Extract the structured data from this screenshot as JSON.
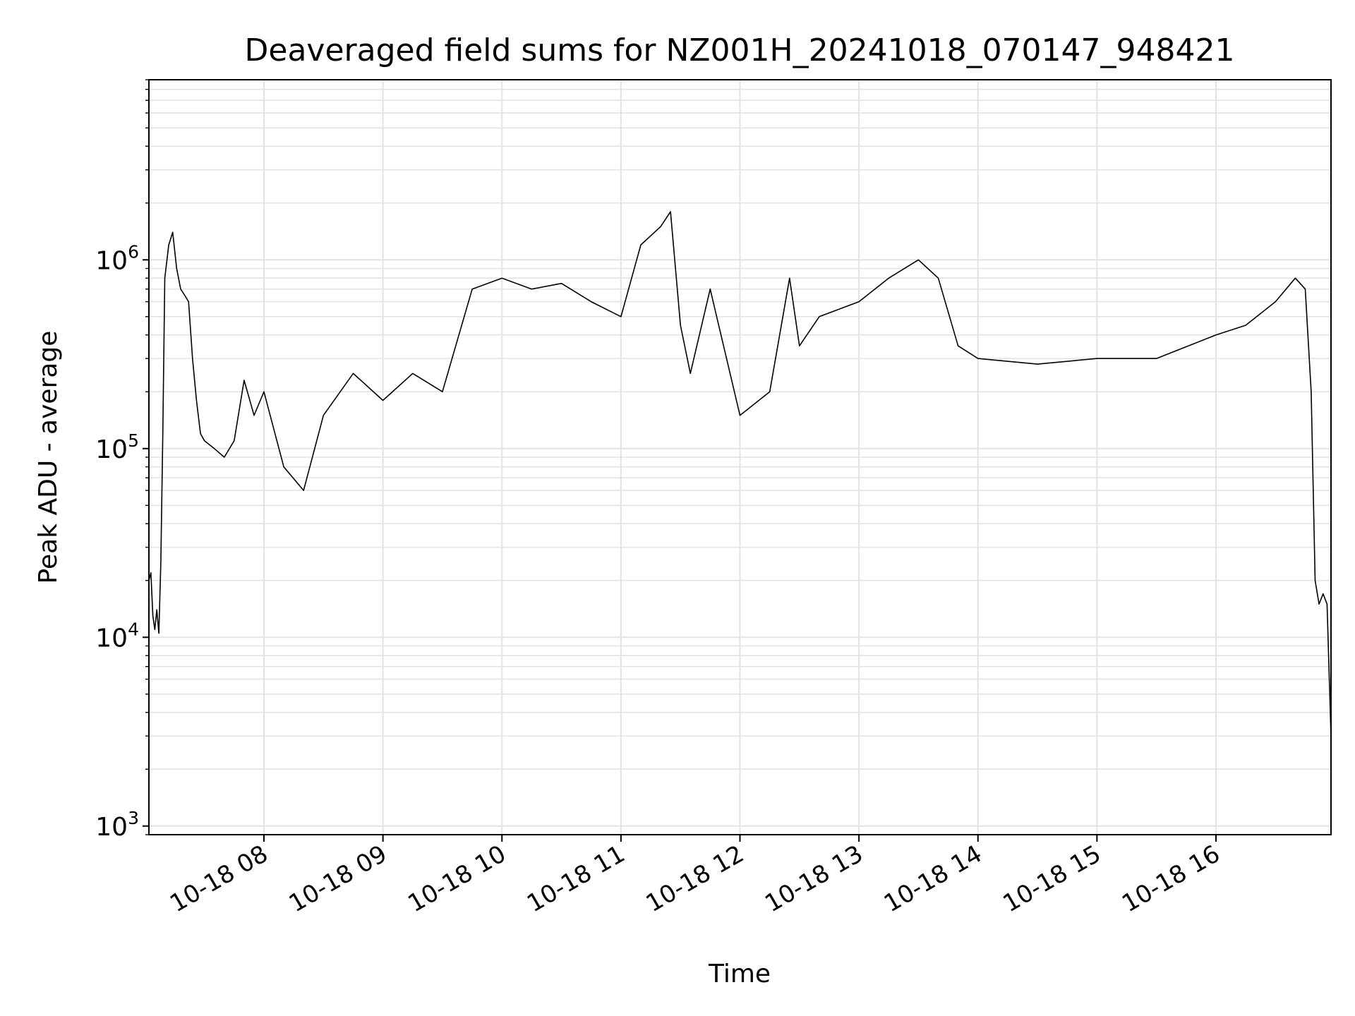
{
  "chart_data": {
    "type": "line",
    "title": "Deaveraged field sums for NZ001H_20241018_070147_948421",
    "xlabel": "Time",
    "ylabel": "Peak ADU - average",
    "yscale": "log",
    "ylim": [
      900,
      9000000
    ],
    "xlim": [
      "2024-10-18 07:02",
      "2024-10-18 16:58"
    ],
    "grid": true,
    "line_color": "#000000",
    "x_tick_labels": [
      "10-18 08",
      "10-18 09",
      "10-18 10",
      "10-18 11",
      "10-18 12",
      "10-18 13",
      "10-18 14",
      "10-18 15",
      "10-18 16"
    ],
    "x_tick_values": [
      "2024-10-18 08:00",
      "2024-10-18 09:00",
      "2024-10-18 10:00",
      "2024-10-18 11:00",
      "2024-10-18 12:00",
      "2024-10-18 13:00",
      "2024-10-18 14:00",
      "2024-10-18 15:00",
      "2024-10-18 16:00"
    ],
    "y_tick_labels": [
      {
        "value": 1000,
        "base": "10",
        "exp": "3"
      },
      {
        "value": 10000,
        "base": "10",
        "exp": "4"
      },
      {
        "value": 100000,
        "base": "10",
        "exp": "5"
      },
      {
        "value": 1000000,
        "base": "10",
        "exp": "6"
      }
    ],
    "series": [
      {
        "x": [
          "2024-10-18 07:02",
          "2024-10-18 07:03",
          "2024-10-18 07:04",
          "2024-10-18 07:05",
          "2024-10-18 07:06",
          "2024-10-18 07:07",
          "2024-10-18 07:08",
          "2024-10-18 07:09",
          "2024-10-18 07:10",
          "2024-10-18 07:12",
          "2024-10-18 07:14",
          "2024-10-18 07:16",
          "2024-10-18 07:18",
          "2024-10-18 07:20",
          "2024-10-18 07:22",
          "2024-10-18 07:24",
          "2024-10-18 07:26",
          "2024-10-18 07:28",
          "2024-10-18 07:30",
          "2024-10-18 07:35",
          "2024-10-18 07:40",
          "2024-10-18 07:45",
          "2024-10-18 07:50",
          "2024-10-18 07:55",
          "2024-10-18 08:00",
          "2024-10-18 08:10",
          "2024-10-18 08:20",
          "2024-10-18 08:30",
          "2024-10-18 08:45",
          "2024-10-18 09:00",
          "2024-10-18 09:15",
          "2024-10-18 09:30",
          "2024-10-18 09:45",
          "2024-10-18 10:00",
          "2024-10-18 10:15",
          "2024-10-18 10:30",
          "2024-10-18 10:45",
          "2024-10-18 11:00",
          "2024-10-18 11:10",
          "2024-10-18 11:20",
          "2024-10-18 11:25",
          "2024-10-18 11:30",
          "2024-10-18 11:35",
          "2024-10-18 11:45",
          "2024-10-18 12:00",
          "2024-10-18 12:15",
          "2024-10-18 12:25",
          "2024-10-18 12:30",
          "2024-10-18 12:40",
          "2024-10-18 13:00",
          "2024-10-18 13:15",
          "2024-10-18 13:30",
          "2024-10-18 13:40",
          "2024-10-18 13:50",
          "2024-10-18 14:00",
          "2024-10-18 14:30",
          "2024-10-18 15:00",
          "2024-10-18 15:30",
          "2024-10-18 16:00",
          "2024-10-18 16:15",
          "2024-10-18 16:30",
          "2024-10-18 16:40",
          "2024-10-18 16:45",
          "2024-10-18 16:48",
          "2024-10-18 16:50",
          "2024-10-18 16:52",
          "2024-10-18 16:54",
          "2024-10-18 16:56",
          "2024-10-18 16:58"
        ],
        "y": [
          20000,
          22000,
          13000,
          11000,
          14000,
          10500,
          25000,
          120000,
          800000,
          1200000,
          1400000,
          900000,
          700000,
          650000,
          600000,
          300000,
          180000,
          120000,
          110000,
          100000,
          90000,
          110000,
          230000,
          150000,
          200000,
          80000,
          60000,
          150000,
          250000,
          180000,
          250000,
          200000,
          700000,
          800000,
          700000,
          750000,
          600000,
          500000,
          1200000,
          1500000,
          1800000,
          450000,
          250000,
          700000,
          150000,
          200000,
          800000,
          350000,
          500000,
          600000,
          800000,
          1000000,
          800000,
          350000,
          300000,
          280000,
          300000,
          300000,
          400000,
          450000,
          600000,
          800000,
          700000,
          200000,
          20000,
          15000,
          17000,
          15000,
          3000
        ]
      }
    ]
  }
}
